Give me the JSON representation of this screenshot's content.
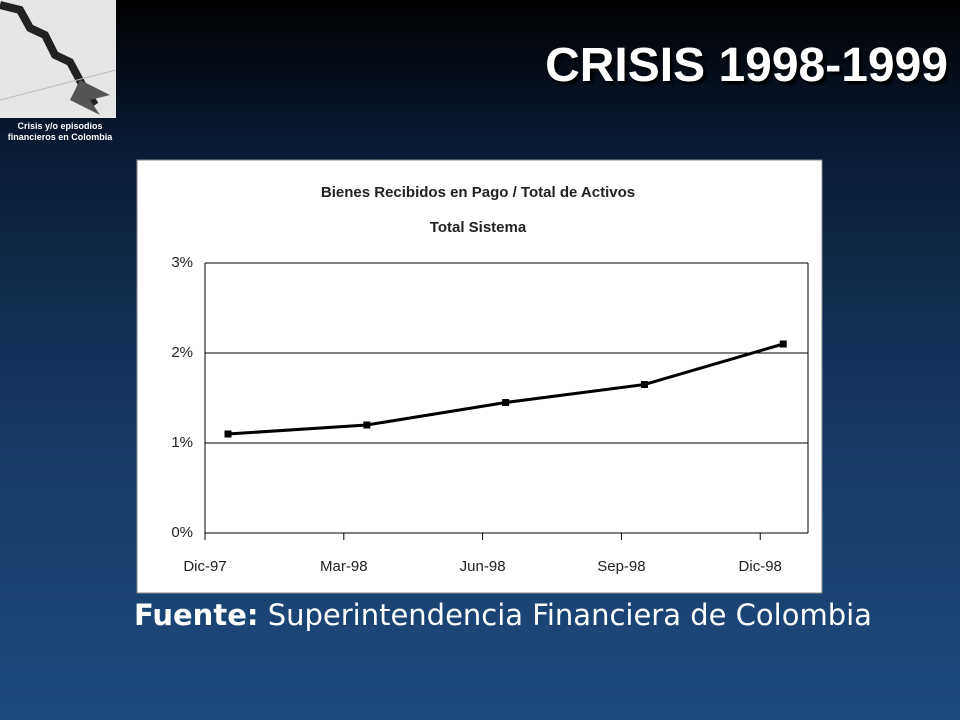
{
  "header": {
    "title": "CRISIS 1998-1999",
    "logo_caption": [
      "Crisis y/o episodios",
      "financieros en Colombia"
    ]
  },
  "chart_data": {
    "type": "line",
    "title": "Bienes Recibidos en Pago / Total de Activos",
    "subtitle": "Total Sistema",
    "categories": [
      "Dic-97",
      "Mar-98",
      "Jun-98",
      "Sep-98",
      "Dic-98"
    ],
    "values": [
      1.1,
      1.2,
      1.45,
      1.65,
      2.1
    ],
    "color": "#000000",
    "ylim": [
      0,
      3
    ],
    "yticks": [
      {
        "value": 0,
        "label": "0%"
      },
      {
        "value": 1,
        "label": "1%"
      },
      {
        "value": 2,
        "label": "2%"
      },
      {
        "value": 3,
        "label": "3%"
      }
    ],
    "grid": true
  },
  "source": {
    "label": "Fuente:",
    "text": "Superintendencia Financiera de Colombia"
  }
}
